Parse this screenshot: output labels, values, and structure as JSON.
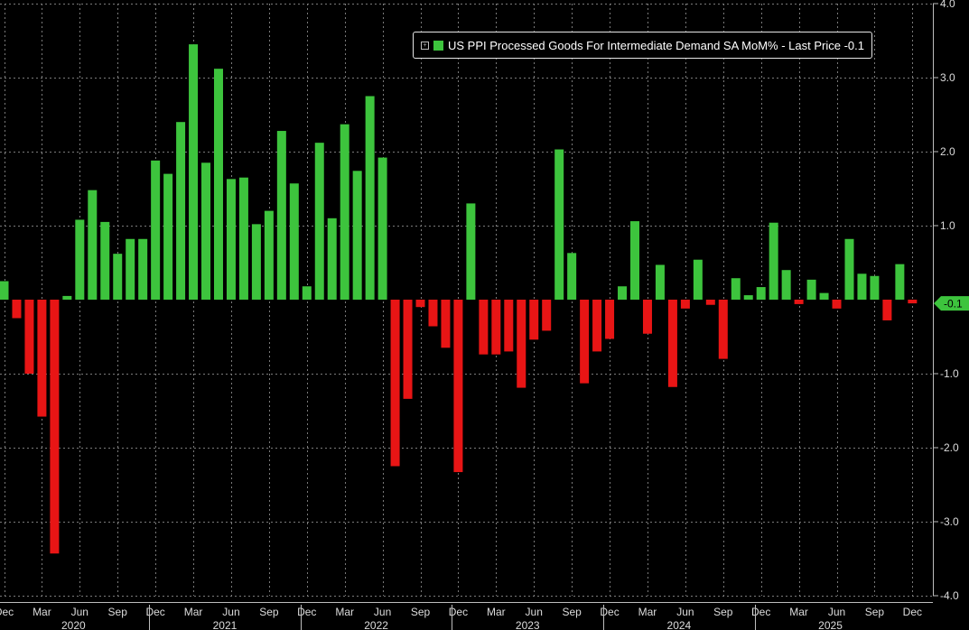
{
  "colors": {
    "background": "#000000",
    "positive": "#3dc43d",
    "negative": "#e81515",
    "grid": "#7a7a7a",
    "axis_text": "#dcdcdc",
    "last_price_badge": "#3dc43d"
  },
  "legend": {
    "toggle_icon": "square-plus-icon",
    "label": "US PPI Processed Goods For Intermediate Demand SA MoM% - Last Price -0.1"
  },
  "last_price_label": "-0.1",
  "chart_data": {
    "type": "bar",
    "title": "US PPI Processed Goods For Intermediate Demand SA MoM% - Last Price -0.1",
    "ylim": [
      -4.0,
      4.0
    ],
    "y_ticks": [
      "4.0",
      "3.0",
      "2.0",
      "1.0",
      "-1.0",
      "-2.0",
      "-3.0",
      "-4.0"
    ],
    "y_tick_values": [
      4,
      3,
      2,
      1,
      -1,
      -2,
      -3,
      -4
    ],
    "grid": true,
    "legend_position": "top-right",
    "month_labels": [
      {
        "index": 0,
        "label": "Dec"
      },
      {
        "index": 3,
        "label": "Mar"
      },
      {
        "index": 6,
        "label": "Jun"
      },
      {
        "index": 9,
        "label": "Sep"
      },
      {
        "index": 12,
        "label": "Dec"
      },
      {
        "index": 15,
        "label": "Mar"
      },
      {
        "index": 18,
        "label": "Jun"
      },
      {
        "index": 21,
        "label": "Sep"
      },
      {
        "index": 24,
        "label": "Dec"
      },
      {
        "index": 27,
        "label": "Mar"
      },
      {
        "index": 30,
        "label": "Jun"
      },
      {
        "index": 33,
        "label": "Sep"
      },
      {
        "index": 36,
        "label": "Dec"
      },
      {
        "index": 39,
        "label": "Mar"
      },
      {
        "index": 42,
        "label": "Jun"
      },
      {
        "index": 45,
        "label": "Sep"
      },
      {
        "index": 48,
        "label": "Dec"
      },
      {
        "index": 51,
        "label": "Mar"
      },
      {
        "index": 54,
        "label": "Jun"
      },
      {
        "index": 57,
        "label": "Sep"
      },
      {
        "index": 60,
        "label": "Dec"
      },
      {
        "index": 63,
        "label": "Mar"
      },
      {
        "index": 66,
        "label": "Jun"
      },
      {
        "index": 69,
        "label": "Sep"
      },
      {
        "index": 72,
        "label": "Dec"
      }
    ],
    "year_labels": [
      {
        "center_index": 6,
        "label": "2020"
      },
      {
        "center_index": 18,
        "label": "2021"
      },
      {
        "center_index": 30,
        "label": "2022"
      },
      {
        "center_index": 42,
        "label": "2023"
      },
      {
        "center_index": 54,
        "label": "2024"
      },
      {
        "center_index": 66,
        "label": "2025"
      }
    ],
    "year_separator_indices": [
      12,
      24,
      36,
      48,
      60
    ],
    "series": [
      {
        "name": "US PPI Processed Goods For Intermediate Demand SA MoM%",
        "values": [
          0.25,
          -0.25,
          -1.0,
          -1.58,
          -3.43,
          0.05,
          1.08,
          1.48,
          1.05,
          0.62,
          0.82,
          0.82,
          1.88,
          1.7,
          2.4,
          3.45,
          1.85,
          3.12,
          1.63,
          1.65,
          1.02,
          1.2,
          2.28,
          1.57,
          0.18,
          2.12,
          1.1,
          2.37,
          1.74,
          2.75,
          1.92,
          -2.25,
          -1.34,
          -0.1,
          -0.36,
          -0.65,
          -2.33,
          1.3,
          -0.74,
          -0.74,
          -0.7,
          -1.19,
          -0.54,
          -0.42,
          2.03,
          0.63,
          -1.13,
          -0.7,
          -0.53,
          0.18,
          1.06,
          -0.46,
          0.47,
          -1.18,
          -0.12,
          0.54,
          -0.07,
          -0.8,
          0.29,
          0.06,
          0.17,
          1.04,
          0.4,
          -0.06,
          0.27,
          0.09,
          -0.12,
          0.82,
          0.35,
          0.32,
          -0.28,
          0.48,
          -0.05
        ]
      }
    ]
  }
}
